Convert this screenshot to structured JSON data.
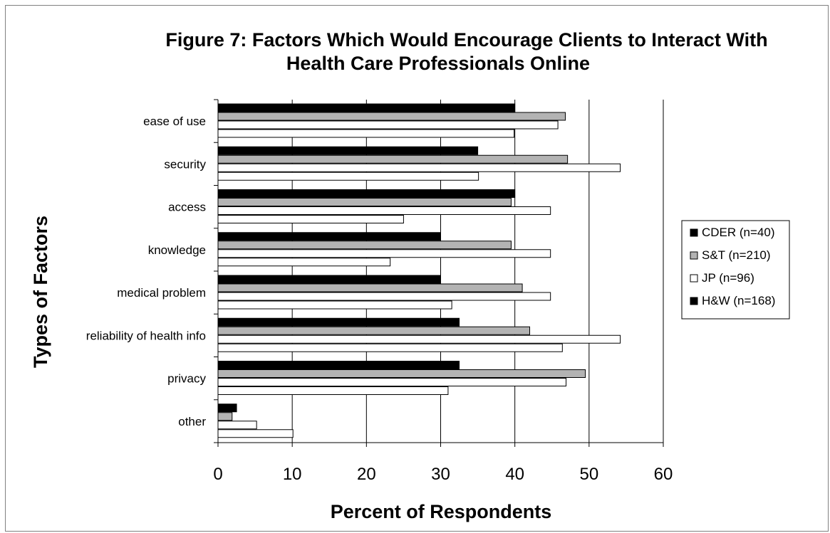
{
  "chart_data": {
    "type": "bar",
    "orientation": "horizontal",
    "title_line1": "Figure 7: Factors Which Would Encourage Clients to Interact With",
    "title_line2": "Health Care Professionals Online",
    "xlabel": "Percent of Respondents",
    "ylabel": "Types of Factors",
    "xlim": [
      0,
      60
    ],
    "xticks": [
      "0",
      "10",
      "20",
      "30",
      "40",
      "50",
      "60"
    ],
    "grid": "vertical",
    "legend_position": "right",
    "categories": [
      "ease of use",
      "security",
      "access",
      "knowledge",
      "medical problem",
      "reliability of health info",
      "privacy",
      "other"
    ],
    "series": [
      {
        "name": "CDER (n=40)",
        "color": "#000000",
        "values": [
          40,
          35,
          40,
          30,
          30,
          32.5,
          32.5,
          2.5
        ]
      },
      {
        "name": "S&T (n=210)",
        "color": "#b3b3b3",
        "values": [
          46.8,
          47.1,
          39.5,
          39.5,
          41,
          42,
          49.5,
          1.9
        ]
      },
      {
        "name": "JP (n=96)",
        "color": "#ffffff",
        "values": [
          45.8,
          54.2,
          44.8,
          44.8,
          44.8,
          54.2,
          46.9,
          5.2
        ]
      },
      {
        "name": "H&W (n=168)",
        "color": "#ffffff",
        "values": [
          39.9,
          35.1,
          25,
          23.2,
          31.5,
          46.4,
          31,
          10.1
        ]
      }
    ],
    "legend_swatches": [
      "#000000",
      "#b3b3b3",
      "#ffffff",
      "#000000"
    ]
  }
}
